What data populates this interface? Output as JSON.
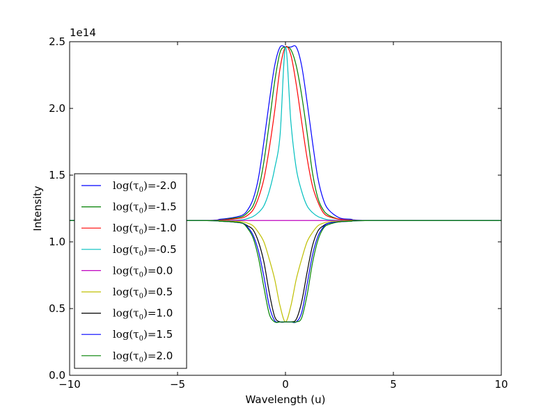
{
  "chart_data": {
    "type": "line",
    "title": "",
    "xlabel": "Wavelength (u)",
    "ylabel": "Intensity",
    "offset_label": "1e14",
    "xlim": [
      -10,
      10
    ],
    "ylim": [
      0.0,
      2.5
    ],
    "x_ticks": [
      -10,
      -5,
      0,
      5,
      10
    ],
    "x_tick_labels": [
      "−10",
      "−5",
      "0",
      "5",
      "10"
    ],
    "y_ticks": [
      0.0,
      0.5,
      1.0,
      1.5,
      2.0,
      2.5
    ],
    "y_tick_labels": [
      "0.0",
      "0.5",
      "1.0",
      "1.5",
      "2.0",
      "2.5"
    ],
    "grid": false,
    "legend_position": "lower-left",
    "continuum": 1.16,
    "x": [
      -10,
      -4,
      -3,
      -2.5,
      -2,
      -1.75,
      -1.5,
      -1.25,
      -1,
      -0.75,
      -0.5,
      -0.25,
      0,
      0.25,
      0.5,
      0.75,
      1,
      1.25,
      1.5,
      1.75,
      2,
      2.5,
      3,
      4,
      10
    ],
    "series": [
      {
        "name": "-2.0",
        "color": "#0000ff",
        "values": [
          1.16,
          1.16,
          1.17,
          1.18,
          1.2,
          1.24,
          1.32,
          1.48,
          1.75,
          2.05,
          2.32,
          2.46,
          2.46,
          2.46,
          2.46,
          2.32,
          2.05,
          1.75,
          1.48,
          1.32,
          1.24,
          1.18,
          1.17,
          1.16,
          1.16
        ]
      },
      {
        "name": "-1.5",
        "color": "#008000",
        "values": [
          1.16,
          1.16,
          1.165,
          1.175,
          1.19,
          1.22,
          1.27,
          1.39,
          1.6,
          1.89,
          2.2,
          2.42,
          2.46,
          2.44,
          2.32,
          2.1,
          1.82,
          1.52,
          1.33,
          1.24,
          1.2,
          1.17,
          1.165,
          1.16,
          1.16
        ]
      },
      {
        "name": "-1.0",
        "color": "#ff0000",
        "values": [
          1.16,
          1.16,
          1.163,
          1.17,
          1.18,
          1.2,
          1.24,
          1.33,
          1.47,
          1.7,
          1.98,
          2.3,
          2.46,
          2.4,
          2.18,
          1.9,
          1.63,
          1.42,
          1.3,
          1.22,
          1.19,
          1.17,
          1.163,
          1.16,
          1.16
        ]
      },
      {
        "name": "-0.5",
        "color": "#00bfbf",
        "values": [
          1.16,
          1.16,
          1.16,
          1.162,
          1.165,
          1.175,
          1.19,
          1.22,
          1.27,
          1.38,
          1.55,
          1.8,
          2.46,
          1.9,
          1.55,
          1.38,
          1.27,
          1.22,
          1.19,
          1.175,
          1.165,
          1.162,
          1.16,
          1.16,
          1.16
        ]
      },
      {
        "name": "0.0",
        "color": "#bf00bf",
        "values": [
          1.16,
          1.16,
          1.16,
          1.16,
          1.16,
          1.16,
          1.16,
          1.16,
          1.16,
          1.16,
          1.16,
          1.16,
          1.16,
          1.16,
          1.16,
          1.16,
          1.16,
          1.16,
          1.16,
          1.16,
          1.16,
          1.16,
          1.16,
          1.16,
          1.16
        ]
      },
      {
        "name": "0.5",
        "color": "#bfbf00",
        "values": [
          1.16,
          1.16,
          1.158,
          1.155,
          1.15,
          1.14,
          1.12,
          1.07,
          1.0,
          0.87,
          0.72,
          0.52,
          0.4,
          0.52,
          0.72,
          0.87,
          1.0,
          1.07,
          1.12,
          1.14,
          1.15,
          1.155,
          1.158,
          1.16,
          1.16
        ]
      },
      {
        "name": "1.0",
        "color": "#000000",
        "values": [
          1.16,
          1.16,
          1.155,
          1.15,
          1.14,
          1.12,
          1.09,
          1.0,
          0.85,
          0.62,
          0.44,
          0.4,
          0.4,
          0.4,
          0.42,
          0.55,
          0.77,
          0.97,
          1.08,
          1.12,
          1.14,
          1.15,
          1.155,
          1.16,
          1.16
        ]
      },
      {
        "name": "1.5",
        "color": "#0000ff",
        "values": [
          1.16,
          1.16,
          1.155,
          1.15,
          1.14,
          1.11,
          1.05,
          0.93,
          0.74,
          0.52,
          0.41,
          0.4,
          0.4,
          0.4,
          0.4,
          0.47,
          0.68,
          0.9,
          1.04,
          1.11,
          1.14,
          1.15,
          1.155,
          1.16,
          1.16
        ]
      },
      {
        "name": "2.0",
        "color": "#008000",
        "values": [
          1.16,
          1.16,
          1.155,
          1.15,
          1.14,
          1.1,
          1.03,
          0.88,
          0.66,
          0.46,
          0.4,
          0.4,
          0.4,
          0.4,
          0.4,
          0.43,
          0.6,
          0.84,
          1.01,
          1.1,
          1.13,
          1.15,
          1.155,
          1.16,
          1.16
        ]
      }
    ]
  },
  "legend": {
    "prefix": "log",
    "symbol": "τ",
    "subscript": "0",
    "equals": "="
  }
}
